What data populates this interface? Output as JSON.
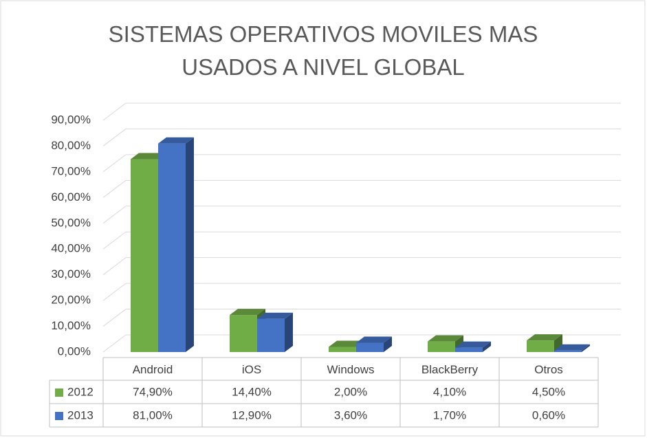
{
  "chart_data": {
    "type": "bar3d",
    "title": "SISTEMAS OPERATIVOS MOVILES MAS USADOS A NIVEL GLOBAL",
    "categories": [
      "Android",
      "iOS",
      "Windows",
      "BlackBerry",
      "Otros"
    ],
    "series": [
      {
        "name": "2012",
        "color": "#70ad47",
        "values": [
          74.9,
          14.4,
          2.0,
          4.1,
          4.5
        ],
        "value_labels": [
          "74,90%",
          "14,40%",
          "2,00%",
          "4,10%",
          "4,50%"
        ]
      },
      {
        "name": "2013",
        "color": "#4472c4",
        "values": [
          81.0,
          12.9,
          3.6,
          1.7,
          0.6
        ],
        "value_labels": [
          "81,00%",
          "12,90%",
          "3,60%",
          "1,70%",
          "0,60%"
        ]
      }
    ],
    "ylim": [
      0,
      90
    ],
    "yticks": [
      {
        "value": 0,
        "label": "0,00%"
      },
      {
        "value": 10,
        "label": "10,00%"
      },
      {
        "value": 20,
        "label": "20,00%"
      },
      {
        "value": 30,
        "label": "30,00%"
      },
      {
        "value": 40,
        "label": "40,00%"
      },
      {
        "value": 50,
        "label": "50,00%"
      },
      {
        "value": 60,
        "label": "60,00%"
      },
      {
        "value": 70,
        "label": "70,00%"
      },
      {
        "value": 80,
        "label": "80,00%"
      },
      {
        "value": 90,
        "label": "90,00%"
      }
    ],
    "grid": true,
    "data_table": true
  }
}
